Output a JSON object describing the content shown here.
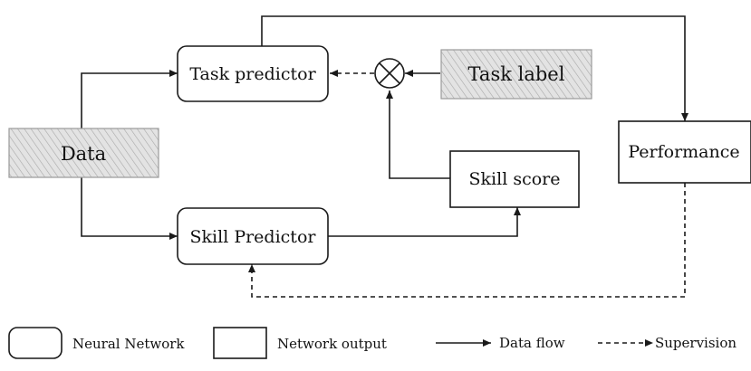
{
  "nodes": {
    "data": "Data",
    "task_predictor": "Task predictor",
    "skill_predictor": "Skill Predictor",
    "task_label": "Task label",
    "skill_score": "Skill score",
    "performance": "Performance"
  },
  "operator_symbol": "multiply-circle-icon",
  "legend": {
    "neural_network": "Neural Network",
    "network_output": "Network output",
    "data_flow": "Data flow",
    "supervision": "Supervision"
  },
  "colors": {
    "stroke": "#1a1a1a",
    "hatch_fill": "#d9d9d9"
  }
}
